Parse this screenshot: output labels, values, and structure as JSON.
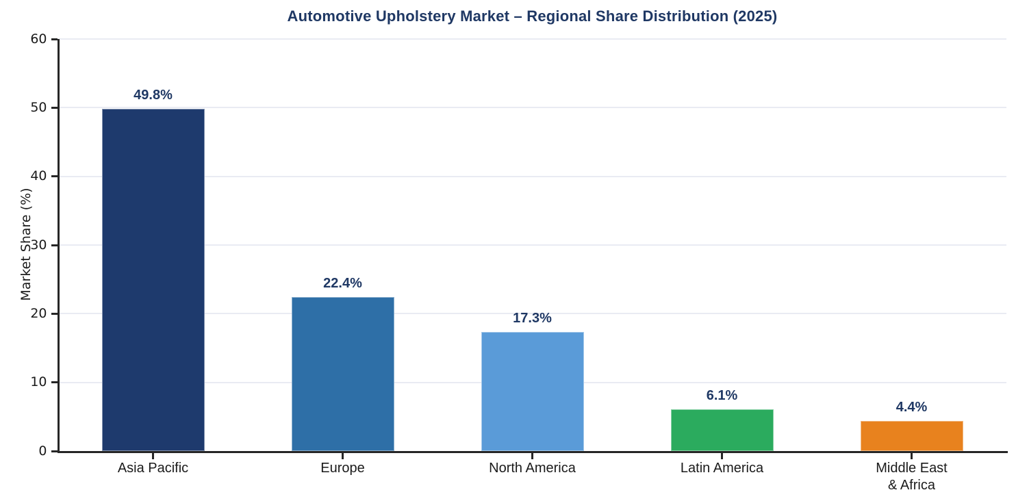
{
  "chart_data": {
    "type": "bar",
    "title": "Automotive Upholstery Market – Regional Share Distribution (2025)",
    "ylabel": "Market Share (%)",
    "xlabel": "",
    "categories": [
      "Asia Pacific",
      "Europe",
      "North America",
      "Latin America",
      "Middle East\n& Africa"
    ],
    "values": [
      49.8,
      22.4,
      17.3,
      6.1,
      4.4
    ],
    "value_labels": [
      "49.8%",
      "22.4%",
      "17.3%",
      "6.1%",
      "4.4%"
    ],
    "bar_colors": [
      "#1e3a6d",
      "#2e6fa7",
      "#5a9bd8",
      "#2bab5e",
      "#e8821e"
    ],
    "ylim": [
      0,
      60
    ],
    "yticks": [
      0,
      10,
      20,
      30,
      40,
      50,
      60
    ],
    "grid": "horizontal-only",
    "legend": "none",
    "colors": {
      "title": "#1f3864",
      "value_label": "#1f3864",
      "axis": "#262626",
      "tick_label": "#1a1a1a",
      "gridline": "#e9ebf3",
      "background": "#ffffff"
    }
  }
}
